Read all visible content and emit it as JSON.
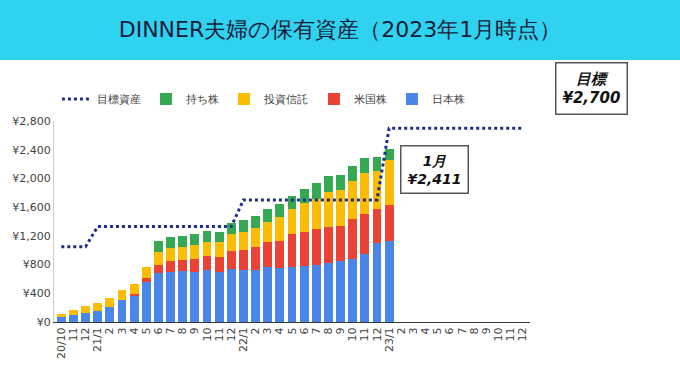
{
  "chart_data": {
    "type": "bar",
    "title": "DINNER夫婦の保有資産（2023年1月時点）",
    "stacked": true,
    "legend": "top",
    "grid": false,
    "categories": [
      "20/10",
      "11",
      "12",
      "21/1",
      "2",
      "3",
      "4",
      "5",
      "6",
      "7",
      "8",
      "9",
      "10",
      "11",
      "12",
      "22/1",
      "2",
      "3",
      "4",
      "5",
      "6",
      "7",
      "8",
      "9",
      "10",
      "11",
      "12",
      "23/1",
      "2",
      "3",
      "4",
      "5",
      "6",
      "7",
      "8",
      "9",
      "10",
      "11",
      "12"
    ],
    "ylim": [
      0,
      2800
    ],
    "yticks": [
      {
        "value": 0,
        "label": "¥0"
      },
      {
        "value": 400,
        "label": "¥400"
      },
      {
        "value": 800,
        "label": "¥800"
      },
      {
        "value": 1200,
        "label": "¥1,200"
      },
      {
        "value": 1600,
        "label": "¥1,600"
      },
      {
        "value": 2000,
        "label": "¥2,000"
      },
      {
        "value": 2400,
        "label": "¥2,400"
      },
      {
        "value": 2800,
        "label": "¥2,800"
      }
    ],
    "series": [
      {
        "name": "目標資産",
        "type": "line",
        "line_style": "dotted",
        "color": "#1f2d8a",
        "values": [
          1050,
          1050,
          1050,
          1330,
          1330,
          1330,
          1330,
          1330,
          1330,
          1330,
          1330,
          1330,
          1330,
          1330,
          1330,
          1700,
          1700,
          1700,
          1700,
          1700,
          1700,
          1700,
          1700,
          1700,
          1700,
          1700,
          1700,
          2700,
          2700,
          2700,
          2700,
          2700,
          2700,
          2700,
          2700,
          2700,
          2700,
          2700,
          2700
        ]
      },
      {
        "name": "持ち株",
        "color": "#34a853",
        "values": [
          0,
          0,
          0,
          0,
          0,
          0,
          0,
          0,
          160,
          150,
          150,
          160,
          150,
          140,
          160,
          170,
          160,
          180,
          190,
          180,
          190,
          210,
          220,
          210,
          210,
          210,
          200,
          161,
          null,
          null,
          null,
          null,
          null,
          null,
          null,
          null,
          null,
          null,
          null
        ]
      },
      {
        "name": "投資信託",
        "color": "#fbbc04",
        "values": [
          40,
          70,
          90,
          110,
          120,
          140,
          140,
          150,
          170,
          180,
          180,
          190,
          200,
          210,
          230,
          250,
          260,
          280,
          330,
          360,
          400,
          430,
          480,
          500,
          530,
          560,
          520,
          620,
          null,
          null,
          null,
          null,
          null,
          null,
          null,
          null,
          null,
          null,
          null
        ]
      },
      {
        "name": "米国株",
        "color": "#ea4335",
        "values": [
          0,
          0,
          0,
          0,
          0,
          0,
          30,
          50,
          120,
          150,
          160,
          180,
          200,
          210,
          250,
          280,
          320,
          360,
          380,
          450,
          480,
          500,
          510,
          490,
          560,
          560,
          480,
          500,
          null,
          null,
          null,
          null,
          null,
          null,
          null,
          null,
          null,
          null,
          null
        ]
      },
      {
        "name": "日本株",
        "color": "#4a86e8",
        "values": [
          70,
          100,
          130,
          150,
          210,
          300,
          360,
          560,
          680,
          700,
          710,
          700,
          720,
          700,
          740,
          720,
          730,
          760,
          750,
          770,
          780,
          790,
          820,
          850,
          880,
          950,
          1100,
          1130,
          null,
          null,
          null,
          null,
          null,
          null,
          null,
          null,
          null,
          null,
          null
        ]
      }
    ],
    "annotations": [
      {
        "text": "目標\n¥2,700"
      },
      {
        "text": "1月\n¥2,411"
      }
    ]
  }
}
